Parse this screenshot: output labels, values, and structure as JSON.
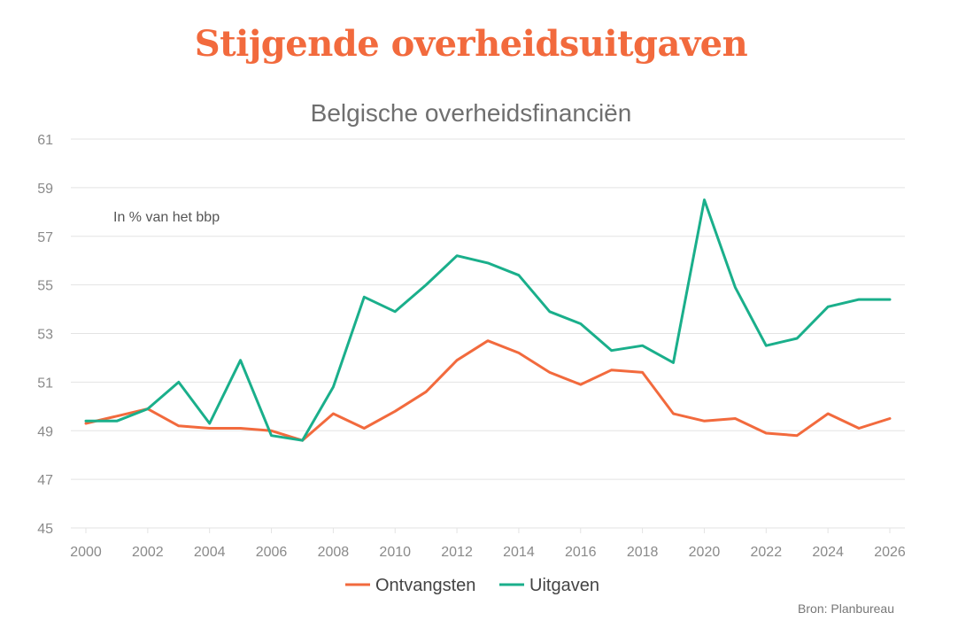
{
  "title": "Stijgende overheidsuitgaven",
  "subtitle": "Belgische overheidsfinanciën",
  "note": "In % van het bbp",
  "source": "Bron: Planbureau",
  "colors": {
    "title": "#f26a3d",
    "ontvangsten": "#f26a3d",
    "uitgaven": "#1aaf8b",
    "grid": "#e3e3e3"
  },
  "chart_data": {
    "type": "line",
    "title": "Belgische overheidsfinanciën",
    "ylabel": "In % van het bbp",
    "ylim": [
      45,
      61
    ],
    "yticks": [
      45,
      47,
      49,
      51,
      53,
      55,
      57,
      59,
      61
    ],
    "xticks": [
      2000,
      2002,
      2004,
      2006,
      2008,
      2010,
      2012,
      2014,
      2016,
      2018,
      2020,
      2022,
      2024,
      2026
    ],
    "xlim": [
      2000,
      2026
    ],
    "x": [
      2000,
      2001,
      2002,
      2003,
      2004,
      2005,
      2006,
      2007,
      2008,
      2009,
      2010,
      2011,
      2012,
      2013,
      2014,
      2015,
      2016,
      2017,
      2018,
      2019,
      2020,
      2021,
      2022,
      2023,
      2024,
      2025,
      2026
    ],
    "grid": true,
    "legend": "bottom-center",
    "series": [
      {
        "name": "Ontvangsten",
        "color": "#f26a3d",
        "values": [
          49.3,
          49.6,
          49.9,
          49.2,
          49.1,
          49.1,
          49.0,
          48.6,
          49.7,
          49.1,
          49.8,
          50.6,
          51.9,
          52.7,
          52.2,
          51.4,
          50.9,
          51.5,
          51.4,
          49.7,
          49.4,
          49.5,
          48.9,
          48.8,
          49.7,
          49.1,
          49.5
        ]
      },
      {
        "name": "Uitgaven",
        "color": "#1aaf8b",
        "values": [
          49.4,
          49.4,
          49.9,
          51.0,
          49.3,
          51.9,
          48.8,
          48.6,
          50.8,
          54.5,
          53.9,
          55.0,
          56.2,
          55.9,
          55.4,
          53.9,
          53.4,
          52.3,
          52.5,
          51.8,
          58.5,
          54.9,
          52.5,
          52.8,
          54.1,
          54.4,
          54.4
        ]
      }
    ]
  }
}
